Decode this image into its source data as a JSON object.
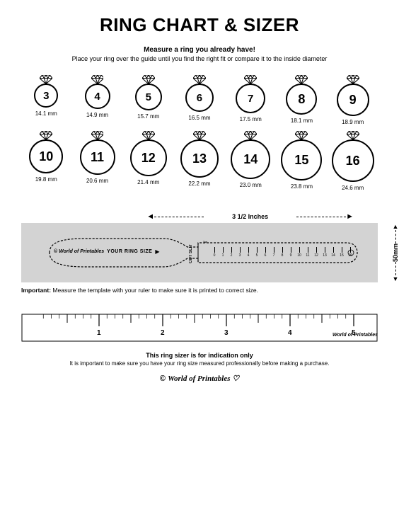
{
  "title": "RING CHART & SIZER",
  "subtitle_bold": "Measure a ring you already have!",
  "subtitle": "Place your ring over the guide until you find the right fit or compare it to the inside diameter",
  "rings": [
    {
      "size": "3",
      "mm": "14.1 mm",
      "d": 34
    },
    {
      "size": "4",
      "mm": "14.9 mm",
      "d": 36
    },
    {
      "size": "5",
      "mm": "15.7 mm",
      "d": 38
    },
    {
      "size": "6",
      "mm": "16.5 mm",
      "d": 40
    },
    {
      "size": "7",
      "mm": "17.5 mm",
      "d": 42
    },
    {
      "size": "8",
      "mm": "18.1 mm",
      "d": 44
    },
    {
      "size": "9",
      "mm": "18.9 mm",
      "d": 46
    },
    {
      "size": "10",
      "mm": "19.8 mm",
      "d": 48
    },
    {
      "size": "11",
      "mm": "20.6 mm",
      "d": 50
    },
    {
      "size": "12",
      "mm": "21.4 mm",
      "d": 52
    },
    {
      "size": "13",
      "mm": "22.2 mm",
      "d": 54
    },
    {
      "size": "14",
      "mm": "23.0 mm",
      "d": 56
    },
    {
      "size": "15",
      "mm": "23.8 mm",
      "d": 58
    },
    {
      "size": "16",
      "mm": "24.6 mm",
      "d": 60
    }
  ],
  "sizer": {
    "width_label": "3 1/2 Inches",
    "height_label": "50mm",
    "brand": "World of Printables",
    "your_ring": "YOUR RING SIZE",
    "cut_slit": "CUT SLIT",
    "marks": [
      "0",
      "1",
      "2",
      "3",
      "4",
      "5",
      "6",
      "7",
      "8",
      "9",
      "10",
      "11",
      "12",
      "13",
      "14",
      "15",
      "16"
    ],
    "important_label": "Important:",
    "important": "Measure the template with your ruler to make sure it is printed to correct size."
  },
  "ruler": {
    "inches": [
      "1",
      "2",
      "3",
      "4",
      "5"
    ],
    "brand": "World of Printables"
  },
  "disclaimer_bold": "This ring sizer is for indication only",
  "disclaimer": "It is important to make sure you have your ring size measured professionally before making a purchase.",
  "footer_brand": "World of Printables",
  "colors": {
    "bg": "#ffffff",
    "band": "#d3d3d3",
    "line": "#000000"
  }
}
